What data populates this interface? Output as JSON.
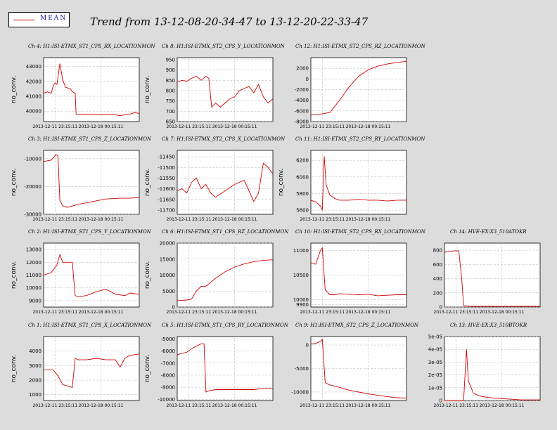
{
  "header": {
    "legend_label": "MEAN",
    "title": "Trend from 13-12-08-20-34-47 to 13-12-20-22-33-47"
  },
  "colors": {
    "series": "#d00000",
    "grid": "#b4b4b4",
    "background": "#dcdcdc"
  },
  "chart_data": [
    {
      "type": "line",
      "title": "Ch 4: H1:ISI-ETMX_ST1_CPS_RX_LOCATIONMON",
      "ylabel": "no_conv.",
      "xticks": [
        "2013-12-11 23:15:11",
        "2013-12-18 00:15:11"
      ],
      "ylim": [
        39300,
        43600
      ],
      "yticks": [
        "40000",
        "41000",
        "42000",
        "43000"
      ],
      "grid": true,
      "legend": "top-left",
      "series": [
        {
          "name": "MEAN",
          "x": [
            0,
            0.04,
            0.08,
            0.1,
            0.12,
            0.14,
            0.17,
            0.2,
            0.23,
            0.28,
            0.3,
            0.33,
            0.34,
            0.36,
            0.4,
            0.5,
            0.6,
            0.7,
            0.8,
            0.9,
            0.95,
            1.0
          ],
          "y": [
            41200,
            41300,
            41200,
            41700,
            41900,
            41800,
            43200,
            42100,
            41600,
            41500,
            41300,
            41200,
            39800,
            39800,
            39800,
            39800,
            39750,
            39800,
            39700,
            39800,
            39900,
            39850
          ]
        }
      ]
    },
    {
      "type": "line",
      "title": "Ch 8: H1:ISI-ETMX_ST2_CPS_Y_LOCATIONMON",
      "ylabel": "no_conv.",
      "xticks": [
        "2013-12-11 23:15:11",
        "2013-12-18 00:15:11"
      ],
      "ylim": [
        650,
        960
      ],
      "yticks": [
        "650",
        "700",
        "750",
        "800",
        "850",
        "900",
        "950"
      ],
      "grid": true,
      "legend": "top-left",
      "series": [
        {
          "name": "MEAN",
          "x": [
            0,
            0.05,
            0.1,
            0.15,
            0.2,
            0.25,
            0.3,
            0.33,
            0.36,
            0.4,
            0.45,
            0.5,
            0.55,
            0.6,
            0.65,
            0.7,
            0.75,
            0.8,
            0.85,
            0.9,
            0.95,
            1.0
          ],
          "y": [
            840,
            850,
            845,
            860,
            870,
            850,
            870,
            860,
            720,
            740,
            720,
            740,
            760,
            770,
            800,
            810,
            820,
            790,
            830,
            770,
            740,
            760
          ]
        }
      ]
    },
    {
      "type": "line",
      "title": "Ch 12: H1:ISI-ETMX_ST2_CPS_RZ_LOCATIONMON",
      "ylabel": "",
      "xticks": [
        "2013-12-11 23:15:11",
        "2013-12-18 00:15:11"
      ],
      "ylim": [
        -8000,
        4000
      ],
      "yticks": [
        "-8000",
        "-6000",
        "-4000",
        "-2000",
        "0",
        "2000"
      ],
      "grid": true,
      "legend": "top-left",
      "series": [
        {
          "name": "MEAN",
          "x": [
            0,
            0.1,
            0.2,
            0.3,
            0.4,
            0.5,
            0.6,
            0.7,
            0.8,
            0.9,
            0.95,
            1.0
          ],
          "y": [
            -6800,
            -6600,
            -6300,
            -4000,
            -1500,
            500,
            1700,
            2400,
            2800,
            3100,
            3200,
            3300
          ]
        }
      ]
    },
    {
      "type": "line",
      "title": "Ch 3: H1:ISI-ETMX_ST1_CPS_Z_LOCATIONMON",
      "ylabel": "no_conv.",
      "xticks": [
        "2013-12-11 23:15:11",
        "2013-12-18 00:15:11"
      ],
      "ylim": [
        -30000,
        -7000
      ],
      "yticks": [
        "-30000",
        "-20000",
        "-10000"
      ],
      "grid": true,
      "legend": "top-left",
      "series": [
        {
          "name": "MEAN",
          "x": [
            0,
            0.08,
            0.13,
            0.15,
            0.17,
            0.2,
            0.25,
            0.35,
            0.5,
            0.65,
            0.8,
            0.9,
            1.0
          ],
          "y": [
            -11000,
            -10500,
            -8500,
            -9000,
            -25000,
            -27000,
            -27500,
            -26500,
            -25500,
            -24500,
            -24200,
            -24200,
            -24000
          ]
        }
      ]
    },
    {
      "type": "line",
      "title": "Ch 7: H1:ISI-ETMX_ST2_CPS_X_LOCATIONMON",
      "ylabel": "no_conv.",
      "xticks": [
        "2013-12-11 23:15:11",
        "2013-12-18 00:15:11"
      ],
      "ylim": [
        -11720,
        -11420
      ],
      "yticks": [
        "-11700",
        "-11650",
        "-11600",
        "-11550",
        "-11500",
        "-11450"
      ],
      "grid": true,
      "legend": "top-left",
      "series": [
        {
          "name": "MEAN",
          "x": [
            0,
            0.05,
            0.1,
            0.15,
            0.2,
            0.25,
            0.3,
            0.35,
            0.4,
            0.5,
            0.6,
            0.7,
            0.75,
            0.8,
            0.85,
            0.9,
            0.95,
            1.0
          ],
          "y": [
            -11610,
            -11600,
            -11620,
            -11570,
            -11550,
            -11600,
            -11580,
            -11620,
            -11640,
            -11610,
            -11580,
            -11560,
            -11610,
            -11660,
            -11620,
            -11480,
            -11500,
            -11530
          ]
        }
      ]
    },
    {
      "type": "line",
      "title": "Ch 11: H1:ISI-ETMX_ST2_CPS_RY_LOCATIONMON",
      "ylabel": "no_conv.",
      "xticks": [
        "2013-12-11 23:15:11",
        "2013-12-18 00:15:11"
      ],
      "ylim": [
        5550,
        6320
      ],
      "yticks": [
        "5600",
        "5800",
        "6000",
        "6200"
      ],
      "grid": true,
      "legend": "top-left",
      "series": [
        {
          "name": "MEAN",
          "x": [
            0,
            0.05,
            0.1,
            0.12,
            0.14,
            0.16,
            0.2,
            0.25,
            0.3,
            0.4,
            0.5,
            0.6,
            0.7,
            0.8,
            0.9,
            1.0
          ],
          "y": [
            5720,
            5700,
            5650,
            5600,
            6250,
            5900,
            5780,
            5740,
            5720,
            5720,
            5730,
            5720,
            5720,
            5710,
            5720,
            5720
          ]
        }
      ]
    },
    {
      "type": "line",
      "title": "Ch 2: H1:ISI-ETMX_ST1_CPS_Y_LOCATIONMON",
      "ylabel": "no_conv.",
      "xticks": [
        "2013-12-11 23:15:11",
        "2013-12-18 00:15:11"
      ],
      "ylim": [
        8500,
        13500
      ],
      "yticks": [
        "9000",
        "10000",
        "11000",
        "12000",
        "13000"
      ],
      "grid": true,
      "legend": "top-left",
      "series": [
        {
          "name": "MEAN",
          "x": [
            0,
            0.08,
            0.14,
            0.17,
            0.2,
            0.25,
            0.3,
            0.33,
            0.36,
            0.45,
            0.55,
            0.65,
            0.75,
            0.85,
            0.9,
            1.0
          ],
          "y": [
            11000,
            11200,
            11800,
            12600,
            12000,
            12000,
            12000,
            9400,
            9300,
            9400,
            9700,
            9900,
            9500,
            9400,
            9600,
            9500
          ]
        }
      ]
    },
    {
      "type": "line",
      "title": "Ch 6: H1:ISI-ETMX_ST1_CPS_RZ_LOCATIONMON",
      "ylabel": "no_conv.",
      "xticks": [
        "2013-12-11 23:15:11",
        "2013-12-18 00:15:11"
      ],
      "ylim": [
        0,
        20000
      ],
      "yticks": [
        "0",
        "5000",
        "10000",
        "15000",
        "20000"
      ],
      "grid": true,
      "legend": "top-left",
      "series": [
        {
          "name": "MEAN",
          "x": [
            0,
            0.1,
            0.15,
            0.2,
            0.25,
            0.3,
            0.4,
            0.5,
            0.6,
            0.7,
            0.8,
            0.9,
            1.0
          ],
          "y": [
            2000,
            2200,
            2500,
            5000,
            6500,
            6500,
            9000,
            11000,
            12500,
            13500,
            14200,
            14600,
            14800
          ]
        }
      ]
    },
    {
      "type": "line",
      "title": "Ch 10: H1:ISI-ETMX_ST2_CPS_RX_LOCATIONMON",
      "ylabel": "",
      "xticks": [
        "2013-12-11 23:15:11",
        "2013-12-18 00:15:11"
      ],
      "ylim": [
        9850,
        11150
      ],
      "yticks": [
        "9900",
        "10000",
        "10500",
        "11000"
      ],
      "grid": true,
      "legend": "top-left",
      "series": [
        {
          "name": "MEAN",
          "x": [
            0,
            0.05,
            0.1,
            0.12,
            0.15,
            0.2,
            0.25,
            0.3,
            0.4,
            0.5,
            0.6,
            0.7,
            0.8,
            0.9,
            1.0
          ],
          "y": [
            10750,
            10720,
            11000,
            11050,
            10200,
            10100,
            10100,
            10120,
            10110,
            10100,
            10110,
            10080,
            10090,
            10100,
            10100
          ]
        }
      ]
    },
    {
      "type": "line",
      "title": "Ch 14: HVE-EX:X3_510ATOKR",
      "ylabel": "",
      "xticks": [
        "2013-12-11 23:15:11",
        "2013-12-18 00:15:11"
      ],
      "ylim": [
        0,
        900
      ],
      "yticks": [
        "0",
        "200",
        "400",
        "600",
        "800"
      ],
      "grid": true,
      "legend": "top-left",
      "series": [
        {
          "name": "MEAN",
          "x": [
            0,
            0.05,
            0.1,
            0.15,
            0.18,
            0.2,
            0.22,
            0.3,
            0.5,
            0.7,
            1.0
          ],
          "y": [
            770,
            780,
            790,
            790,
            400,
            20,
            15,
            10,
            10,
            10,
            10
          ]
        }
      ]
    },
    {
      "type": "line",
      "title": "Ch 1: H1:ISI-ETMX_ST1_CPS_X_LOCATIONMON",
      "ylabel": "no_conv.",
      "xticks": [
        "2013-12-11 23:15:11",
        "2013-12-18 00:15:11"
      ],
      "ylim": [
        600,
        5000
      ],
      "yticks": [
        "1000",
        "2000",
        "3000",
        "4000"
      ],
      "grid": true,
      "legend": "top-left",
      "series": [
        {
          "name": "MEAN",
          "x": [
            0,
            0.1,
            0.15,
            0.2,
            0.25,
            0.3,
            0.33,
            0.36,
            0.45,
            0.55,
            0.65,
            0.75,
            0.8,
            0.85,
            0.9,
            1.0
          ],
          "y": [
            2700,
            2700,
            2300,
            1700,
            1600,
            1500,
            3500,
            3400,
            3400,
            3500,
            3400,
            3400,
            2900,
            3500,
            3700,
            3800
          ]
        }
      ]
    },
    {
      "type": "line",
      "title": "Ch 5: H1:ISI-ETMX_ST1_CPS_RY_LOCATIONMON",
      "ylabel": "no_conv.",
      "xticks": [
        "2013-12-11 23:15:11",
        "2013-12-18 00:15:11"
      ],
      "ylim": [
        -10100,
        -4800
      ],
      "yticks": [
        "-10000",
        "-9000",
        "-8000",
        "-7000",
        "-6000",
        "-5000"
      ],
      "grid": true,
      "legend": "top-left",
      "series": [
        {
          "name": "MEAN",
          "x": [
            0,
            0.05,
            0.1,
            0.15,
            0.2,
            0.25,
            0.28,
            0.3,
            0.33,
            0.4,
            0.5,
            0.6,
            0.7,
            0.8,
            0.9,
            1.0
          ],
          "y": [
            -6300,
            -6200,
            -6100,
            -5800,
            -5600,
            -5400,
            -5400,
            -9400,
            -9300,
            -9200,
            -9200,
            -9200,
            -9200,
            -9200,
            -9100,
            -9100
          ]
        }
      ]
    },
    {
      "type": "line",
      "title": "Ch 9: H1:ISI-ETMX_ST2_CPS_Z_LOCATIONMON",
      "ylabel": "",
      "xticks": [
        "2013-12-11 23:15:11",
        "2013-12-18 00:15:11"
      ],
      "ylim": [
        -11800,
        1800
      ],
      "yticks": [
        "-10000",
        "-5000",
        "0"
      ],
      "grid": true,
      "legend": "top-left",
      "series": [
        {
          "name": "MEAN",
          "x": [
            0,
            0.05,
            0.1,
            0.12,
            0.15,
            0.2,
            0.3,
            0.4,
            0.5,
            0.6,
            0.7,
            0.8,
            0.9,
            1.0
          ],
          "y": [
            200,
            300,
            800,
            1200,
            -8000,
            -8500,
            -9000,
            -9600,
            -10000,
            -10400,
            -10700,
            -11000,
            -11200,
            -11300
          ]
        }
      ]
    },
    {
      "type": "line",
      "title": "Ch 13: HVE-EX:X3_510BTOKR",
      "ylabel": "",
      "xticks": [
        "2013-12-11 23:15:11",
        "2013-12-18 00:15:11"
      ],
      "ylim": [
        0,
        5e-05
      ],
      "yticks": [
        "0",
        "1e-05",
        "2e-05",
        "3e-05",
        "4e-05",
        "5e-05"
      ],
      "grid": true,
      "legend": "top-left",
      "series": [
        {
          "name": "MEAN",
          "x": [
            0,
            0.1,
            0.2,
            0.23,
            0.25,
            0.28,
            0.3,
            0.35,
            0.4,
            0.5,
            0.6,
            0.7,
            0.8,
            1.0
          ],
          "y": [
            0,
            0,
            0,
            4e-05,
            1.5e-05,
            1e-05,
            6e-06,
            4e-06,
            3e-06,
            2e-06,
            1.5e-06,
            1e-06,
            5e-07,
            5e-07
          ]
        }
      ]
    }
  ]
}
